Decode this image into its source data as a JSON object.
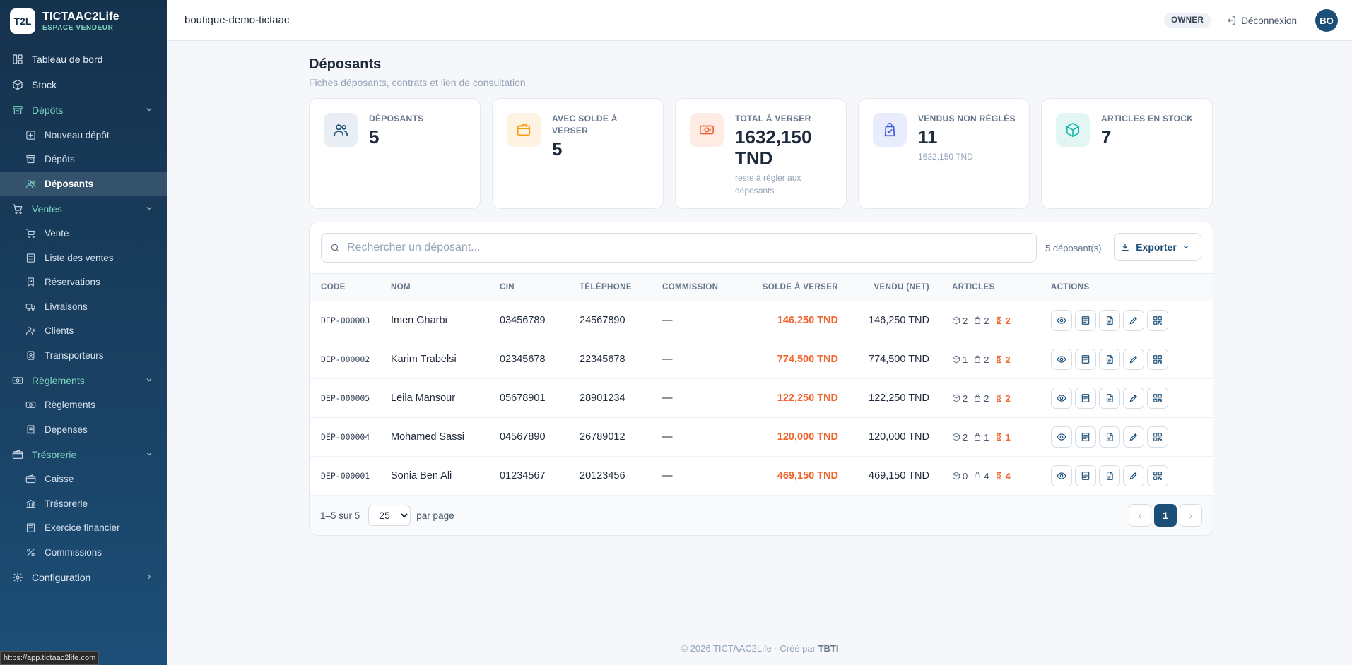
{
  "brand": {
    "logo": "T2L",
    "title": "TICTAAC2Life",
    "subtitle": "ESPACE VENDEUR"
  },
  "sidebar": {
    "items": [
      {
        "label": "Tableau de bord",
        "icon": "dashboard-icon"
      },
      {
        "label": "Stock",
        "icon": "box-icon"
      },
      {
        "label": "Dépôts",
        "icon": "archive-icon",
        "open": true,
        "children": [
          {
            "label": "Nouveau dépôt",
            "icon": "plus-square-icon"
          },
          {
            "label": "Dépôts",
            "icon": "archive-icon"
          },
          {
            "label": "Déposants",
            "icon": "users-icon",
            "active": true
          }
        ]
      },
      {
        "label": "Ventes",
        "icon": "cart-icon",
        "open": true,
        "children": [
          {
            "label": "Vente",
            "icon": "cart-icon"
          },
          {
            "label": "Liste des ventes",
            "icon": "list-icon"
          },
          {
            "label": "Réservations",
            "icon": "bookmark-icon"
          },
          {
            "label": "Livraisons",
            "icon": "truck-icon"
          },
          {
            "label": "Clients",
            "icon": "user-plus-icon"
          },
          {
            "label": "Transporteurs",
            "icon": "badge-icon"
          }
        ]
      },
      {
        "label": "Règlements",
        "icon": "money-icon",
        "open": true,
        "children": [
          {
            "label": "Règlements",
            "icon": "money-icon"
          },
          {
            "label": "Dépenses",
            "icon": "receipt-icon"
          }
        ]
      },
      {
        "label": "Trésorerie",
        "icon": "wallet-icon",
        "open": true,
        "children": [
          {
            "label": "Caisse",
            "icon": "wallet-icon"
          },
          {
            "label": "Trésorerie",
            "icon": "bank-icon"
          },
          {
            "label": "Exercice financier",
            "icon": "ledger-icon"
          },
          {
            "label": "Commissions",
            "icon": "percent-icon"
          }
        ]
      },
      {
        "label": "Configuration",
        "icon": "gear-icon"
      }
    ]
  },
  "status_url": "https://app.tictaac2life.com",
  "topbar": {
    "shop": "boutique-demo-tictaac",
    "role": "OWNER",
    "logout": "Déconnexion",
    "avatar": "BO"
  },
  "page": {
    "title": "Déposants",
    "subtitle": "Fiches déposants, contrats et lien de consultation."
  },
  "stats": [
    {
      "label": "Déposants",
      "value": "5",
      "note": "",
      "color": "#1c4f78"
    },
    {
      "label": "Avec solde à verser",
      "value": "5",
      "note": "",
      "color": "#f59e0b"
    },
    {
      "label": "Total à verser",
      "value": "1632,150 TND",
      "note": "reste à régler aux déposants",
      "color": "#f0642d"
    },
    {
      "label": "Vendus non réglés",
      "value": "11",
      "note": "1632,150 TND",
      "color": "#3b5bdb"
    },
    {
      "label": "Articles en stock",
      "value": "7",
      "note": "",
      "color": "#14b8a6"
    }
  ],
  "search": {
    "placeholder": "Rechercher un déposant...",
    "value": ""
  },
  "count_text": "5 déposant(s)",
  "export_label": "Exporter",
  "table": {
    "headers": [
      "Code",
      "Nom",
      "CIN",
      "Téléphone",
      "Commission",
      "Solde à verser",
      "Vendu (net)",
      "Articles",
      "Actions"
    ],
    "rows": [
      {
        "code": "DEP-000003",
        "nom": "Imen Gharbi",
        "cin": "03456789",
        "tel": "24567890",
        "commission": "—",
        "solde": "146,250 TND",
        "vendu": "146,250 TND",
        "stock": "2",
        "vendus": "2",
        "pending": "2"
      },
      {
        "code": "DEP-000002",
        "nom": "Karim Trabelsi",
        "cin": "02345678",
        "tel": "22345678",
        "commission": "—",
        "solde": "774,500 TND",
        "vendu": "774,500 TND",
        "stock": "1",
        "vendus": "2",
        "pending": "2"
      },
      {
        "code": "DEP-000005",
        "nom": "Leila Mansour",
        "cin": "05678901",
        "tel": "28901234",
        "commission": "—",
        "solde": "122,250 TND",
        "vendu": "122,250 TND",
        "stock": "2",
        "vendus": "2",
        "pending": "2"
      },
      {
        "code": "DEP-000004",
        "nom": "Mohamed Sassi",
        "cin": "04567890",
        "tel": "26789012",
        "commission": "—",
        "solde": "120,000 TND",
        "vendu": "120,000 TND",
        "stock": "2",
        "vendus": "1",
        "pending": "1"
      },
      {
        "code": "DEP-000001",
        "nom": "Sonia Ben Ali",
        "cin": "01234567",
        "tel": "20123456",
        "commission": "—",
        "solde": "469,150 TND",
        "vendu": "469,150 TND",
        "stock": "0",
        "vendus": "4",
        "pending": "4"
      }
    ],
    "row_actions": [
      "view-icon",
      "contract-icon",
      "pdf-icon",
      "edit-icon",
      "qr-icon"
    ]
  },
  "pagination": {
    "range": "1–5 sur 5",
    "per_page": "25",
    "per_page_label": "par page",
    "current": "1",
    "prev": "‹",
    "next": "›"
  },
  "footer": {
    "text": "© 2026 TICTAAC2Life · Créé par",
    "author": "TBTI"
  }
}
